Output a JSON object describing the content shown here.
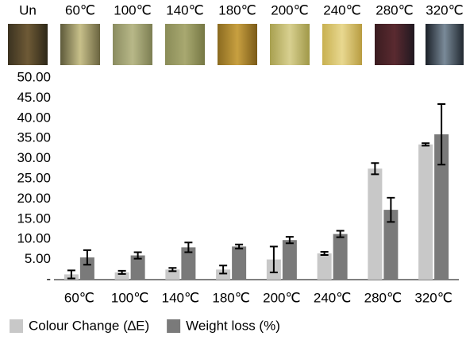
{
  "swatches": {
    "labels": [
      "Un",
      "60℃",
      "100℃",
      "140℃",
      "180℃",
      "200℃",
      "240℃",
      "280℃",
      "320℃"
    ]
  },
  "chart_data": {
    "type": "bar",
    "categories": [
      "60℃",
      "100℃",
      "140℃",
      "180℃",
      "200℃",
      "240℃",
      "280℃",
      "320℃"
    ],
    "series": [
      {
        "name": "Colour Change (∆E)",
        "color": "#c8c8c8",
        "values": [
          1.3,
          1.8,
          2.5,
          2.5,
          5.0,
          6.5,
          27.5,
          33.5
        ],
        "errors": [
          1.0,
          0.4,
          0.4,
          1.0,
          3.2,
          0.4,
          1.4,
          0.3
        ]
      },
      {
        "name": "Weight loss (%)",
        "color": "#7a7a7a",
        "values": [
          5.5,
          6.0,
          8.0,
          8.2,
          9.8,
          11.3,
          17.3,
          36.0
        ],
        "errors": [
          1.8,
          0.8,
          1.2,
          0.5,
          0.8,
          0.8,
          3.0,
          7.5
        ]
      }
    ],
    "ylim": [
      0,
      50
    ],
    "yticks": [
      {
        "value": 0,
        "label": "-"
      },
      {
        "value": 5,
        "label": "5.00"
      },
      {
        "value": 10,
        "label": "10.00"
      },
      {
        "value": 15,
        "label": "15.00"
      },
      {
        "value": 20,
        "label": "20.00"
      },
      {
        "value": 25,
        "label": "25.00"
      },
      {
        "value": 30,
        "label": "30.00"
      },
      {
        "value": 35,
        "label": "35.00"
      },
      {
        "value": 40,
        "label": "40.00"
      },
      {
        "value": 45,
        "label": "45.00"
      },
      {
        "value": 50,
        "label": "50.00"
      }
    ],
    "grid": false
  }
}
